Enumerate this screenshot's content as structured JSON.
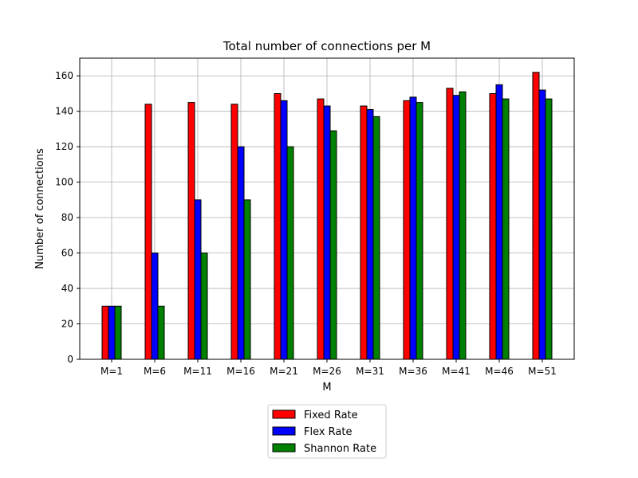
{
  "chart_data": {
    "type": "bar",
    "title": "Total number of connections per M",
    "xlabel": "M",
    "ylabel": "Number of connections",
    "categories": [
      "M=1",
      "M=6",
      "M=11",
      "M=16",
      "M=21",
      "M=26",
      "M=31",
      "M=36",
      "M=41",
      "M=46",
      "M=51"
    ],
    "ylim": [
      0,
      170
    ],
    "yticks": [
      0,
      20,
      40,
      60,
      80,
      100,
      120,
      140,
      160
    ],
    "grid": true,
    "legend_position": "bottom-center",
    "series": [
      {
        "name": "Fixed Rate",
        "color": "#ff0000",
        "values": [
          30,
          144,
          145,
          144,
          150,
          147,
          143,
          146,
          153,
          150,
          162
        ]
      },
      {
        "name": "Flex Rate",
        "color": "#0000ff",
        "values": [
          30,
          60,
          90,
          120,
          146,
          143,
          141,
          148,
          149,
          155,
          152
        ]
      },
      {
        "name": "Shannon Rate",
        "color": "#008000",
        "values": [
          30,
          30,
          60,
          90,
          120,
          129,
          137,
          145,
          151,
          147,
          147
        ]
      }
    ]
  }
}
